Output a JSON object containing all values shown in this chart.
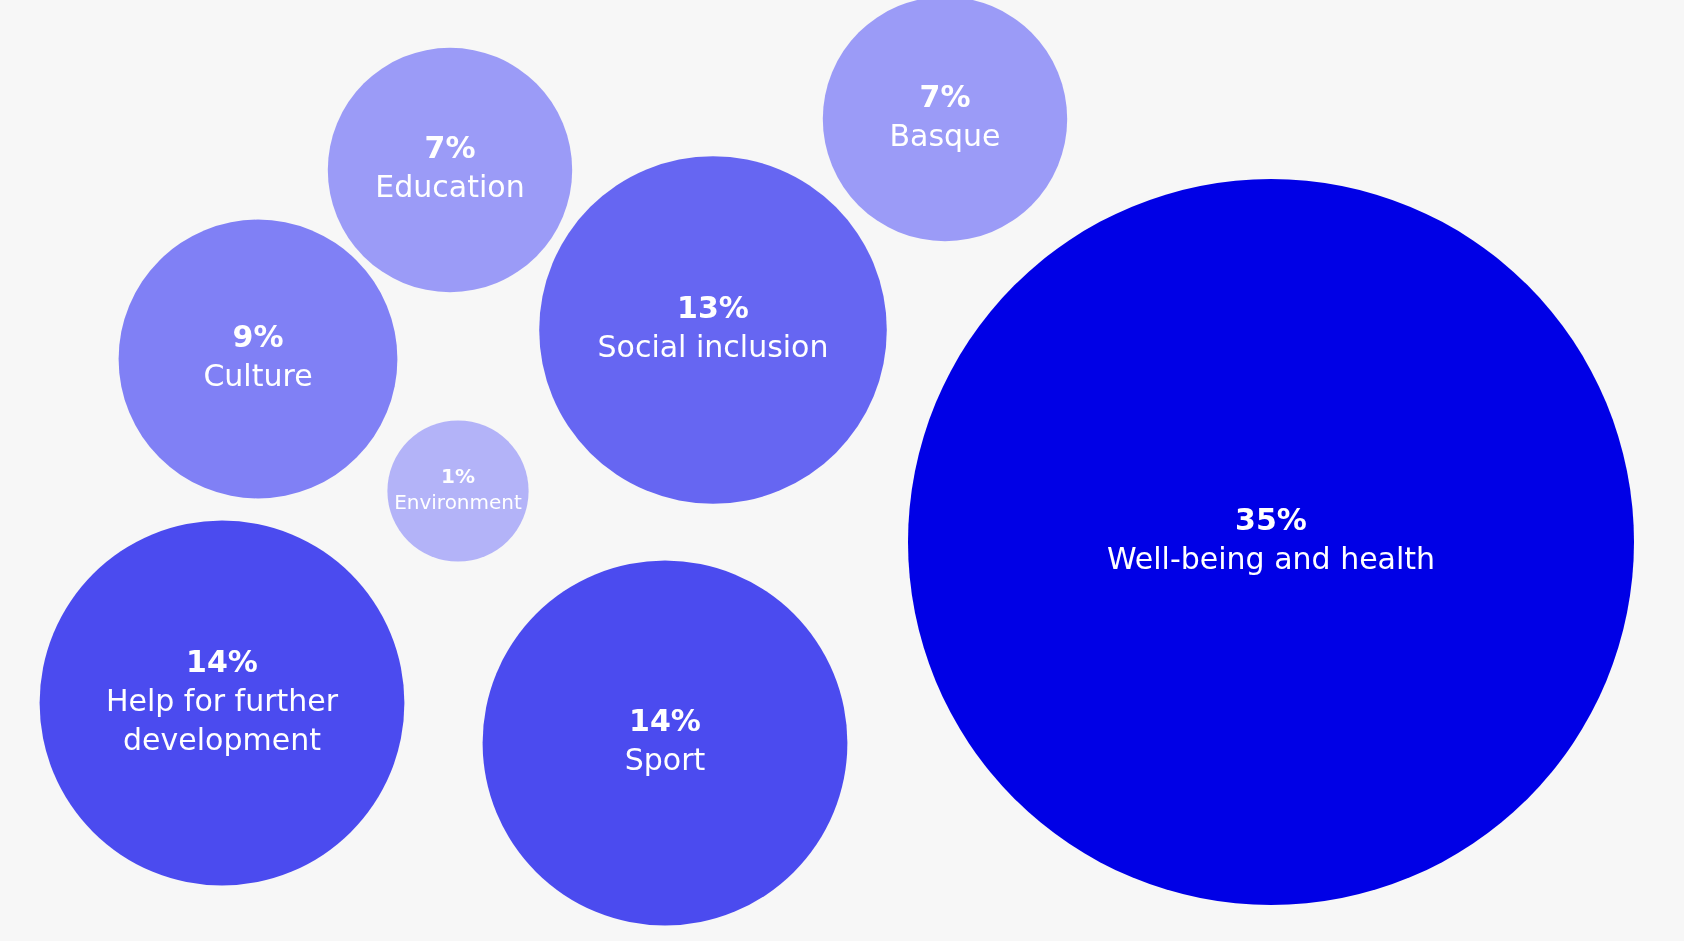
{
  "chart_data": {
    "type": "other",
    "categories": [
      "Well-being and health",
      "Help for further development",
      "Sport",
      "Social inclusion",
      "Culture",
      "Education",
      "Basque",
      "Environment"
    ],
    "values": [
      35,
      14,
      14,
      13,
      9,
      7,
      7,
      1
    ],
    "value_labels": [
      "35%",
      "14%",
      "14%",
      "13%",
      "9%",
      "7%",
      "7%",
      "1%"
    ],
    "colors": [
      "#0000e6",
      "#4b4bef",
      "#4b4bef",
      "#6666f2",
      "#8080f5",
      "#9b9bf7",
      "#9b9bf7",
      "#b3b3f8"
    ]
  }
}
